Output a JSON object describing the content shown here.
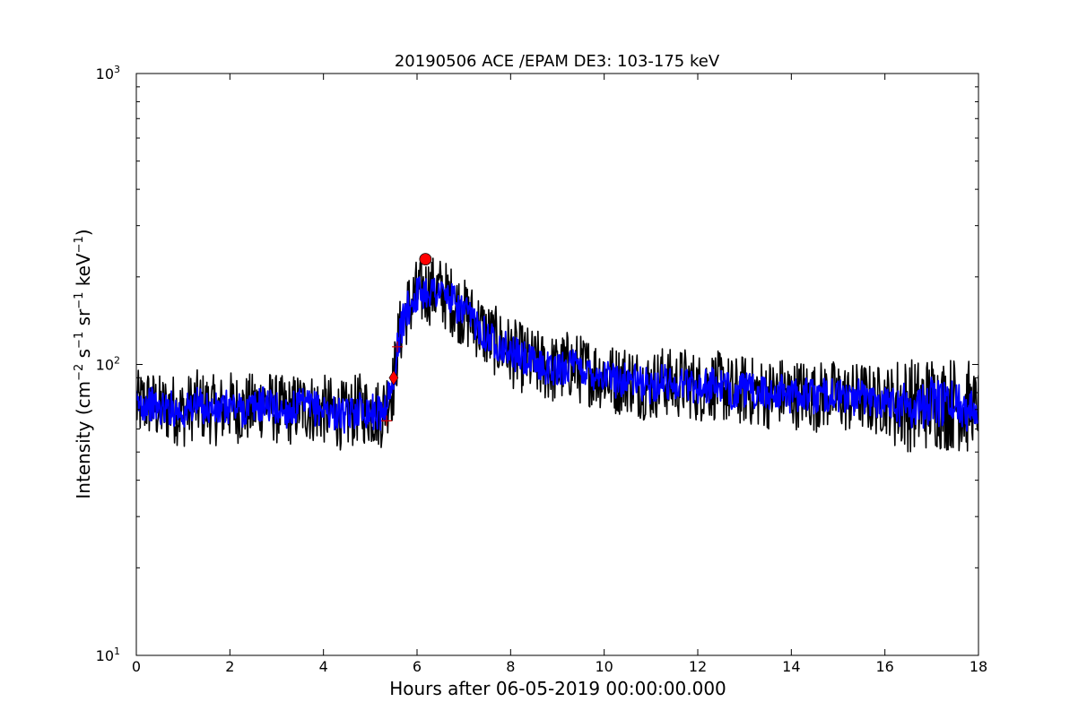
{
  "chart_data": {
    "type": "line",
    "title": "20190506 ACE /EPAM DE3: 103-175 keV",
    "xlabel": "Hours after 06-05-2019 00:00:00.000",
    "ylabel": {
      "prefix": "Intensity (cm",
      "exp1": "−2",
      "s": " s",
      "exp2": "−1",
      "sr": " sr",
      "exp3": "−1",
      "kev": " keV",
      "exp4": "−1",
      "suffix": ")"
    },
    "xlim": [
      0,
      18
    ],
    "ylim": [
      10,
      1000
    ],
    "yscale": "log",
    "grid": false,
    "legend": "none",
    "x_ticks": [
      {
        "value": 0,
        "label": "0"
      },
      {
        "value": 2,
        "label": "2"
      },
      {
        "value": 4,
        "label": "4"
      },
      {
        "value": 6,
        "label": "6"
      },
      {
        "value": 8,
        "label": "8"
      },
      {
        "value": 10,
        "label": "10"
      },
      {
        "value": 12,
        "label": "12"
      },
      {
        "value": 14,
        "label": "14"
      },
      {
        "value": 16,
        "label": "16"
      },
      {
        "value": 18,
        "label": "18"
      }
    ],
    "y_ticks": [
      {
        "value": 10,
        "base": "10",
        "exp": "1"
      },
      {
        "value": 100,
        "base": "10",
        "exp": "2"
      },
      {
        "value": 1000,
        "base": "10",
        "exp": "3"
      }
    ],
    "series": [
      {
        "color": "#000000",
        "x": [
          0,
          0.25,
          0.5,
          0.75,
          1,
          1.25,
          1.5,
          1.75,
          2,
          2.25,
          2.5,
          2.75,
          3,
          3.25,
          3.5,
          3.75,
          4,
          4.25,
          4.5,
          4.75,
          5,
          5.25,
          5.5,
          5.6,
          5.75,
          6,
          6.25,
          6.5,
          6.75,
          7,
          7.25,
          7.5,
          7.75,
          8,
          8.25,
          8.5,
          8.75,
          9,
          9.25,
          9.5,
          9.75,
          10,
          10.25,
          10.5,
          10.75,
          11,
          11.25,
          11.5,
          11.75,
          12,
          12.25,
          12.5,
          12.75,
          13,
          13.25,
          13.5,
          13.75,
          14,
          14.25,
          14.5,
          14.75,
          15,
          15.25,
          15.5,
          15.75,
          16,
          16.25,
          16.5,
          16.75,
          17,
          17.25,
          17.5,
          17.75,
          18
        ],
        "y": [
          72,
          74,
          70,
          71,
          68,
          73,
          71,
          69,
          72,
          70,
          71,
          74,
          70,
          69,
          72,
          71,
          70,
          68,
          66,
          71,
          69,
          68,
          85,
          120,
          150,
          175,
          180,
          178,
          165,
          150,
          140,
          125,
          118,
          110,
          105,
          100,
          98,
          95,
          100,
          96,
          94,
          92,
          88,
          90,
          86,
          84,
          88,
          85,
          87,
          83,
          85,
          84,
          80,
          82,
          80,
          79,
          81,
          78,
          80,
          77,
          79,
          78,
          76,
          78,
          75,
          76,
          74,
          73,
          72,
          75,
          73,
          74,
          71,
          72
        ],
        "noise": 0.28
      },
      {
        "color": "#0000ff",
        "x": [
          0,
          0.25,
          0.5,
          0.75,
          1,
          1.25,
          1.5,
          1.75,
          2,
          2.25,
          2.5,
          2.75,
          3,
          3.25,
          3.5,
          3.75,
          4,
          4.25,
          4.5,
          4.75,
          5,
          5.25,
          5.5,
          5.6,
          5.75,
          6,
          6.25,
          6.5,
          6.75,
          7,
          7.25,
          7.5,
          7.75,
          8,
          8.25,
          8.5,
          8.75,
          9,
          9.25,
          9.5,
          9.75,
          10,
          10.25,
          10.5,
          10.75,
          11,
          11.25,
          11.5,
          11.75,
          12,
          12.25,
          12.5,
          12.75,
          13,
          13.25,
          13.5,
          13.75,
          14,
          14.25,
          14.5,
          14.75,
          15,
          15.25,
          15.5,
          15.75,
          16,
          16.25,
          16.5,
          16.75,
          17,
          17.25,
          17.5,
          17.75,
          18
        ],
        "y": [
          72,
          74,
          70,
          71,
          68,
          73,
          71,
          69,
          72,
          70,
          71,
          74,
          70,
          69,
          72,
          71,
          70,
          68,
          66,
          71,
          69,
          68,
          85,
          120,
          150,
          175,
          180,
          178,
          165,
          150,
          140,
          125,
          118,
          110,
          105,
          100,
          98,
          95,
          100,
          96,
          94,
          92,
          88,
          90,
          86,
          84,
          88,
          85,
          87,
          83,
          85,
          84,
          80,
          82,
          80,
          79,
          81,
          78,
          80,
          77,
          79,
          78,
          76,
          78,
          75,
          76,
          74,
          73,
          72,
          75,
          73,
          74,
          71,
          72
        ],
        "noise": 0.14
      }
    ],
    "markers": [
      {
        "type": "plus",
        "x": 5.35,
        "y": 64,
        "color": "#cc0000"
      },
      {
        "type": "plus",
        "x": 5.58,
        "y": 115,
        "color": "#cc0000"
      },
      {
        "type": "diamond",
        "x": 5.5,
        "y": 90,
        "color": "#ff0000"
      },
      {
        "type": "circle",
        "x": 6.18,
        "y": 230,
        "color": "#ff0000"
      }
    ]
  }
}
